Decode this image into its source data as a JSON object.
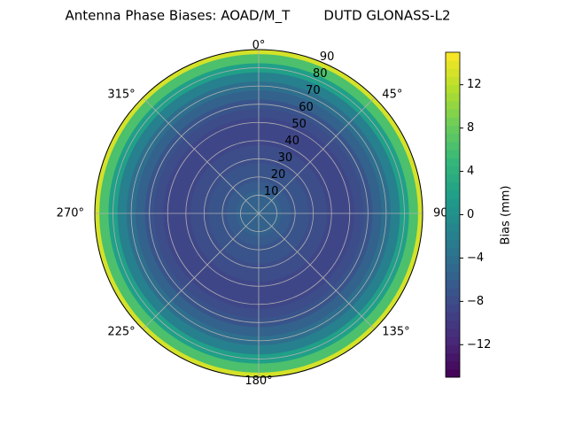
{
  "chart_data": {
    "type": "polar",
    "title": "Antenna Phase Biases: AOAD/M_T        DUTD GLONASS-L2",
    "r": [
      0,
      5,
      10,
      15,
      20,
      25,
      30,
      35,
      40,
      45,
      50,
      55,
      60,
      65,
      70,
      75,
      80,
      85,
      90
    ],
    "values": [
      -5,
      -5.5,
      -6,
      -6.5,
      -7,
      -7.5,
      -8,
      -8,
      -8.5,
      -8.5,
      -8.5,
      -8,
      -7.5,
      -6,
      -4.5,
      -2,
      1.5,
      6,
      13
    ],
    "rlim": [
      0,
      90
    ],
    "rticks": [
      10,
      20,
      30,
      40,
      50,
      60,
      70,
      80,
      90
    ],
    "thetaticks": [
      {
        "value": 0,
        "label": "0°"
      },
      {
        "value": 45,
        "label": "45°"
      },
      {
        "value": 90,
        "label": "90°"
      },
      {
        "value": 135,
        "label": "135°"
      },
      {
        "value": 180,
        "label": "180°"
      },
      {
        "value": 225,
        "label": "225°"
      },
      {
        "value": 270,
        "label": "270°"
      },
      {
        "value": 315,
        "label": "315°"
      }
    ],
    "colormap": "viridis",
    "clim": [
      -15,
      15
    ],
    "cticks": [
      {
        "value": -12,
        "label": "−12"
      },
      {
        "value": -8,
        "label": "−8"
      },
      {
        "value": -4,
        "label": "−4"
      },
      0,
      4,
      8,
      12
    ],
    "colorbar_label": "Bias (mm)",
    "grid": true
  }
}
